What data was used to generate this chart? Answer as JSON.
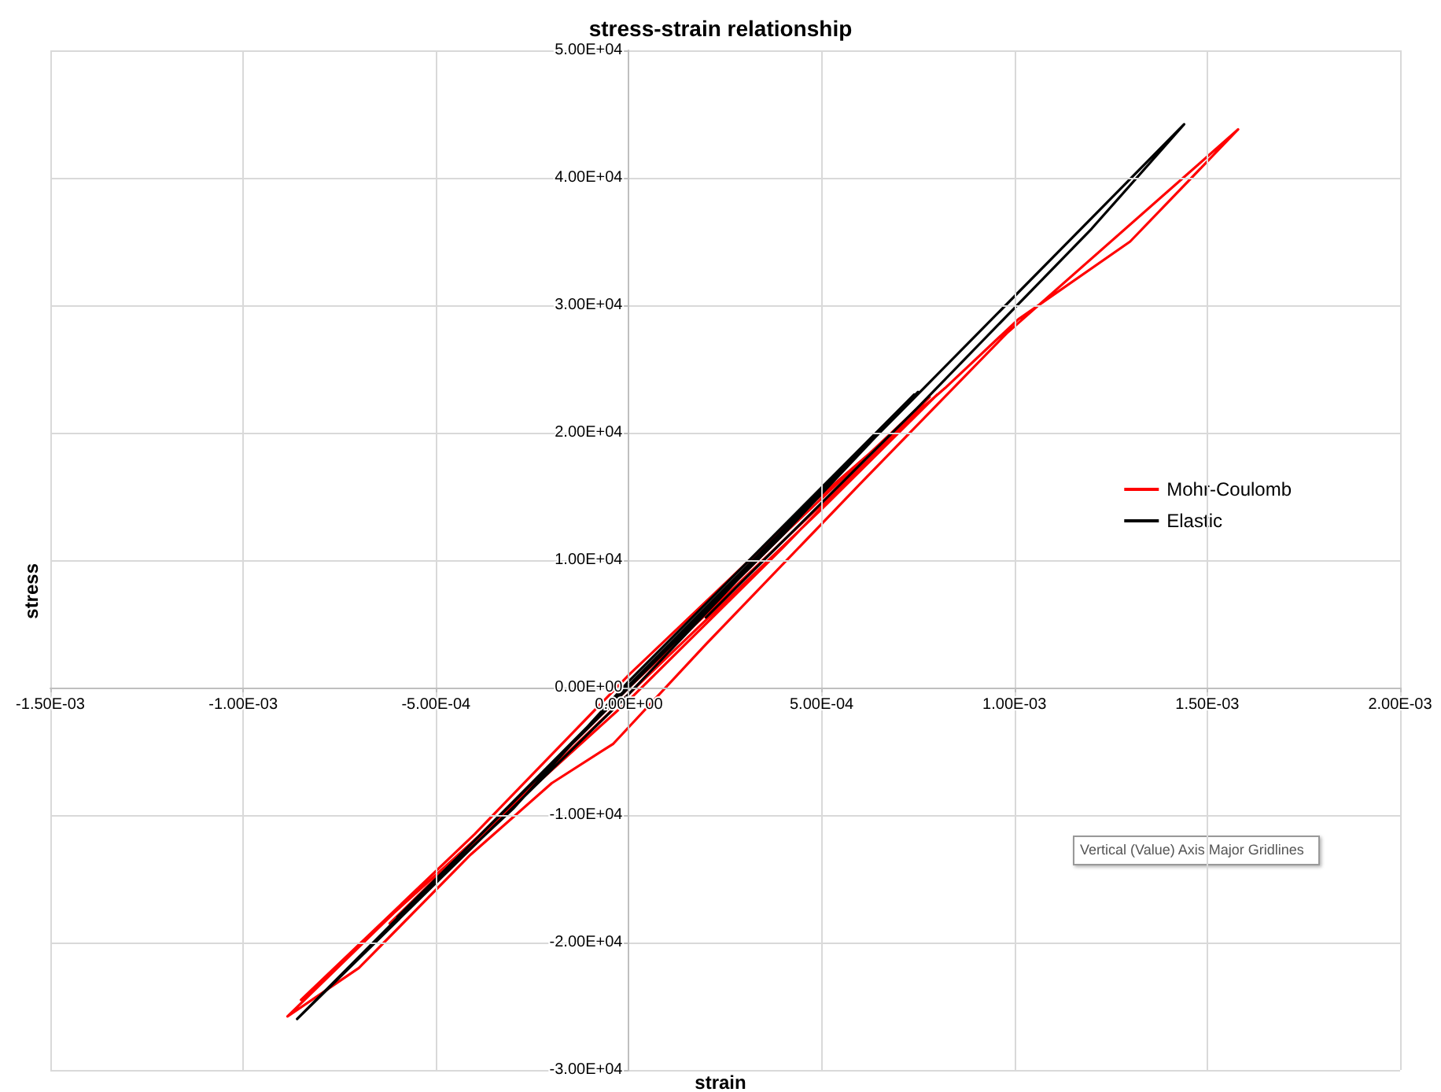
{
  "chart_data": {
    "type": "line",
    "title": "stress-strain relationship",
    "xlabel": "strain",
    "ylabel": "stress",
    "xlim": [
      -0.0015,
      0.002
    ],
    "ylim": [
      -30000,
      50000
    ],
    "xticks": [
      {
        "value": -0.0015,
        "label": "-1.50E-03"
      },
      {
        "value": -0.001,
        "label": "-1.00E-03"
      },
      {
        "value": -0.0005,
        "label": "-5.00E-04"
      },
      {
        "value": 0,
        "label": "0.00E+00"
      },
      {
        "value": 0.0005,
        "label": "5.00E-04"
      },
      {
        "value": 0.001,
        "label": "1.00E-03"
      },
      {
        "value": 0.0015,
        "label": "1.50E-03"
      },
      {
        "value": 0.002,
        "label": "2.00E-03"
      }
    ],
    "yticks": [
      {
        "value": -30000,
        "label": "-3.00E+04"
      },
      {
        "value": -20000,
        "label": "-2.00E+04"
      },
      {
        "value": -10000,
        "label": "-1.00E+04"
      },
      {
        "value": 0,
        "label": "0.00E+00"
      },
      {
        "value": 10000,
        "label": "1.00E+04"
      },
      {
        "value": 20000,
        "label": "2.00E+04"
      },
      {
        "value": 30000,
        "label": "3.00E+04"
      },
      {
        "value": 40000,
        "label": "4.00E+04"
      },
      {
        "value": 50000,
        "label": "5.00E+04"
      }
    ],
    "grid": true,
    "legend": "right",
    "marker": "none",
    "line_style": "solid",
    "annotations": [
      "Vertical (Value) Axis Major Gridlines"
    ],
    "series": [
      {
        "name": "Mohr-Coulomb",
        "color": "#ff0000",
        "x": [
          0,
          0.0004,
          0.0008,
          0.0005,
          0,
          -0.00062,
          -0.0003,
          0,
          0.0004,
          0.00078,
          0.0004,
          0,
          -0.00061,
          -0.000885,
          -0.0007,
          -0.00041,
          -0.0002,
          -4e-05,
          0.0002,
          0.0006,
          0.00098,
          0.00158,
          0.0013,
          0.00101,
          0.00082,
          0.0004,
          0,
          -0.0004,
          -0.00085
        ],
        "values": [
          0,
          11500,
          23000,
          14000,
          -500,
          -18500,
          -9000,
          0,
          12000,
          22800,
          11000,
          -1000,
          -17700,
          -25800,
          -22000,
          -13100,
          -7500,
          -4400,
          3400,
          16000,
          27800,
          43800,
          35000,
          28900,
          23500,
          12500,
          1000,
          -11500,
          -24500
        ]
      },
      {
        "name": "Elastic",
        "color": "#000000",
        "x": [
          0,
          0.00075,
          0.0004,
          1e-05,
          -0.0006,
          -0.0003,
          0,
          0.00074,
          0,
          -0.00086,
          -0.0004,
          0,
          0.0007,
          0.00144,
          0.0012,
          0.00075,
          0.0002
        ],
        "values": [
          0,
          23200,
          12000,
          300,
          -18000,
          -9500,
          500,
          23000,
          -500,
          -26000,
          -12000,
          200,
          21500,
          44200,
          36000,
          22000,
          5500
        ]
      }
    ]
  }
}
